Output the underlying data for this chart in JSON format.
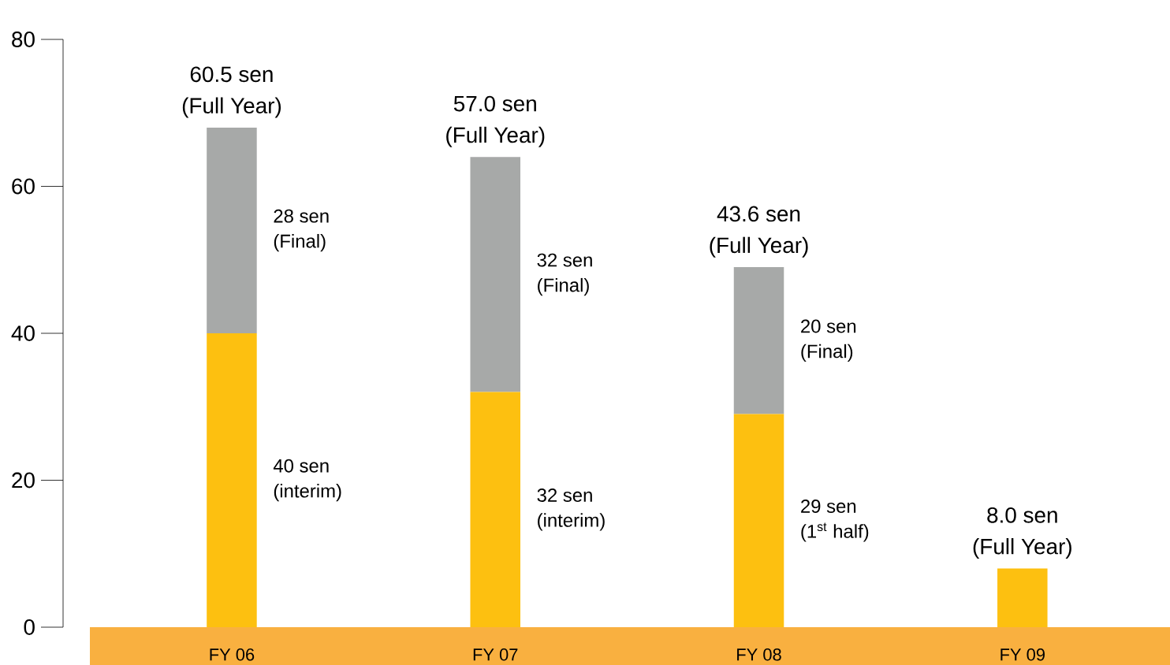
{
  "chart_data": {
    "type": "bar",
    "stacked": true,
    "categories": [
      "FY 06",
      "FY 07",
      "FY 08",
      "FY 09"
    ],
    "series": [
      {
        "color": "#fdc010",
        "values": [
          40,
          32,
          29,
          8
        ]
      },
      {
        "color": "#a7a9a8",
        "values": [
          28,
          32,
          20,
          null
        ]
      }
    ],
    "annotations": [
      {
        "text": "60.5 sen (Full Year)",
        "x": "FY 06",
        "y": 68
      },
      {
        "text": "57.0 sen (Full Year)",
        "x": "FY 07",
        "y": 64
      },
      {
        "text": "43.6 sen (Full Year)",
        "x": "FY 08",
        "y": 49
      },
      {
        "text": "8.0 sen (Full Year)",
        "x": "FY 09",
        "y": 8
      },
      "40 sen (interim)",
      "32 sen (interim)",
      "29 sen (1$^{st}$ half)",
      "28 sen (Final)",
      "32 sen (Final)",
      "20 sen (Final)"
    ],
    "ylim": [
      0,
      80
    ],
    "yticks": [
      0,
      20,
      40,
      60,
      80
    ]
  }
}
